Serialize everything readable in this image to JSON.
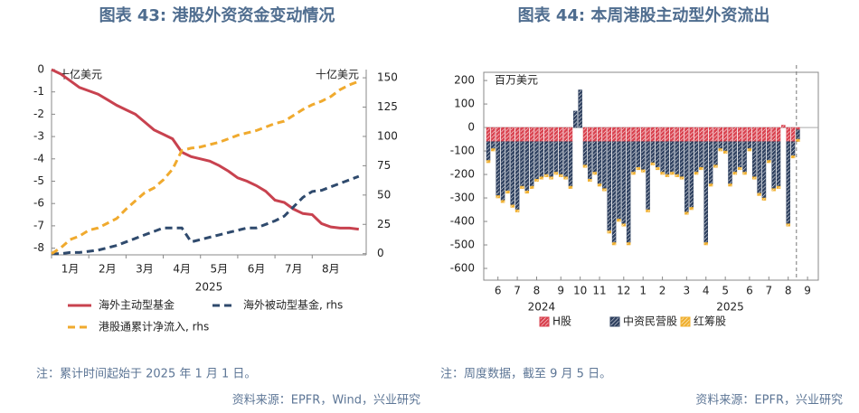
{
  "chart_data": [
    {
      "type": "line",
      "title": "图表 43: 港股外资资金变动情况",
      "unit_left": "十亿美元",
      "unit_right": "十亿美元",
      "x_group_label": "2025",
      "categories": [
        null,
        null,
        "1月",
        null,
        null,
        null,
        "2月",
        null,
        null,
        null,
        "3月",
        null,
        null,
        null,
        "4月",
        null,
        null,
        null,
        "5月",
        null,
        null,
        null,
        "6月",
        null,
        null,
        null,
        "7月",
        null,
        null,
        null,
        "8月",
        null,
        null,
        null
      ],
      "ylim": [
        -8.3,
        0
      ],
      "yticks": [
        -8,
        -7,
        -6,
        -5,
        -4,
        -3,
        -2,
        -1,
        0
      ],
      "y2lim": [
        -1,
        157
      ],
      "y2ticks": [
        0,
        25,
        50,
        75,
        100,
        125,
        150
      ],
      "series": [
        {
          "name": "海外主动型基金",
          "color": "#c8424f",
          "line_style": "solid",
          "values": [
            0,
            -0.2,
            -0.5,
            -0.8,
            -0.95,
            -1.1,
            -1.35,
            -1.6,
            -1.8,
            -2.0,
            -2.35,
            -2.7,
            -2.9,
            -3.1,
            -3.7,
            -3.9,
            -4.0,
            -4.1,
            -4.3,
            -4.55,
            -4.85,
            -5.0,
            -5.2,
            -5.45,
            -5.85,
            -5.95,
            -6.25,
            -6.45,
            -6.5,
            -6.9,
            -7.05,
            -7.1,
            -7.1,
            -7.15
          ]
        },
        {
          "name": "海外被动型基金, rhs",
          "color": "#2f4a6d",
          "line_style": "dashed",
          "axis": "y2",
          "values": [
            0,
            0,
            1,
            1,
            2,
            3,
            5,
            7,
            10,
            13,
            16,
            19,
            22,
            22,
            22,
            10,
            12,
            14,
            16,
            18,
            20,
            22,
            22,
            25,
            28,
            32,
            40,
            48,
            53,
            54,
            57,
            60,
            63,
            66
          ]
        },
        {
          "name": "港股通累计净流入, rhs",
          "color": "#f0aa2e",
          "line_style": "dashed",
          "axis": "y2",
          "values": [
            0,
            5,
            12,
            15,
            20,
            22,
            26,
            30,
            38,
            45,
            52,
            56,
            63,
            72,
            88,
            90,
            91,
            93,
            95,
            98,
            101,
            103,
            105,
            108,
            111,
            113,
            118,
            123,
            127,
            130,
            134,
            140,
            144,
            147
          ]
        }
      ],
      "note": "注：累计时间起始于 2025 年 1 月 1 日。",
      "source": "资料来源：EPFR，Wind，兴业研究"
    },
    {
      "type": "bar",
      "stacked": true,
      "title": "图表 44: 本周港股主动型外资流出",
      "unit_left": "百万美元",
      "year_labels": [
        "2024",
        "2025"
      ],
      "categories": [
        null,
        null,
        "6",
        null,
        null,
        null,
        "7",
        null,
        null,
        null,
        "8",
        null,
        null,
        null,
        null,
        "9",
        null,
        null,
        null,
        "10",
        null,
        null,
        null,
        "11",
        null,
        null,
        null,
        null,
        "12",
        null,
        null,
        null,
        "1",
        null,
        null,
        null,
        "2",
        null,
        null,
        null,
        null,
        "3",
        null,
        null,
        null,
        "4",
        null,
        null,
        null,
        "5",
        null,
        null,
        null,
        null,
        "6",
        null,
        null,
        null,
        "7",
        null,
        null,
        null,
        "8",
        null,
        null,
        null,
        "9"
      ],
      "ylim": [
        -650,
        235
      ],
      "yticks": [
        -600,
        -500,
        -400,
        -300,
        -200,
        -100,
        0,
        100,
        200
      ],
      "series": [
        {
          "name": "H股",
          "color": "#d9424f",
          "values": [
            -60,
            -60,
            -60,
            -60,
            -60,
            -60,
            -60,
            -60,
            -60,
            -60,
            -60,
            -60,
            -60,
            -60,
            -60,
            -60,
            -60,
            -60,
            0,
            0,
            -60,
            -60,
            -60,
            -60,
            -60,
            -60,
            -60,
            -60,
            -60,
            -60,
            -60,
            -60,
            -60,
            -60,
            -60,
            -60,
            -60,
            -60,
            -60,
            -60,
            -60,
            -60,
            -60,
            -60,
            -60,
            -60,
            -60,
            -60,
            -60,
            -60,
            -60,
            -60,
            -60,
            -60,
            -60,
            -60,
            -60,
            -60,
            -60,
            -60,
            -60,
            10,
            -60,
            -60,
            -10,
            null,
            null
          ]
        },
        {
          "name": "中资民营股",
          "color": "#2f4160",
          "values": [
            -80,
            -30,
            -230,
            -250,
            -210,
            -270,
            -290,
            -190,
            -210,
            -190,
            -160,
            -150,
            -140,
            -150,
            -130,
            -140,
            -150,
            -190,
            70,
            160,
            -100,
            -160,
            -130,
            -180,
            -200,
            -380,
            -430,
            -330,
            -350,
            -430,
            -130,
            -110,
            -120,
            -290,
            -90,
            -110,
            -130,
            -140,
            -130,
            -140,
            -150,
            -300,
            -280,
            -130,
            -110,
            -430,
            -180,
            -100,
            -30,
            -40,
            -180,
            -130,
            -110,
            -130,
            -30,
            -150,
            -220,
            -240,
            -80,
            -200,
            -190,
            0,
            -350,
            -60,
            -40,
            null,
            null
          ]
        },
        {
          "name": "红筹股",
          "color": "#f0b030",
          "values": [
            -10,
            -10,
            -10,
            -10,
            -10,
            -10,
            -10,
            -10,
            -10,
            -10,
            -10,
            -10,
            -10,
            -10,
            -10,
            -10,
            -10,
            -10,
            0,
            0,
            -10,
            -10,
            -10,
            -10,
            -10,
            -10,
            -10,
            -10,
            -10,
            -10,
            -10,
            -10,
            -10,
            -10,
            -10,
            -10,
            -10,
            -10,
            -10,
            -10,
            -10,
            -10,
            -10,
            -10,
            -10,
            -10,
            -10,
            -10,
            -10,
            -10,
            -10,
            -10,
            -10,
            -10,
            -10,
            -10,
            -10,
            -10,
            -10,
            -10,
            -10,
            0,
            -10,
            -10,
            -10,
            null,
            null
          ]
        }
      ],
      "note": "注：周度数据，截至 9 月 5 日。",
      "source": "资料来源：EPFR，兴业研究"
    }
  ]
}
